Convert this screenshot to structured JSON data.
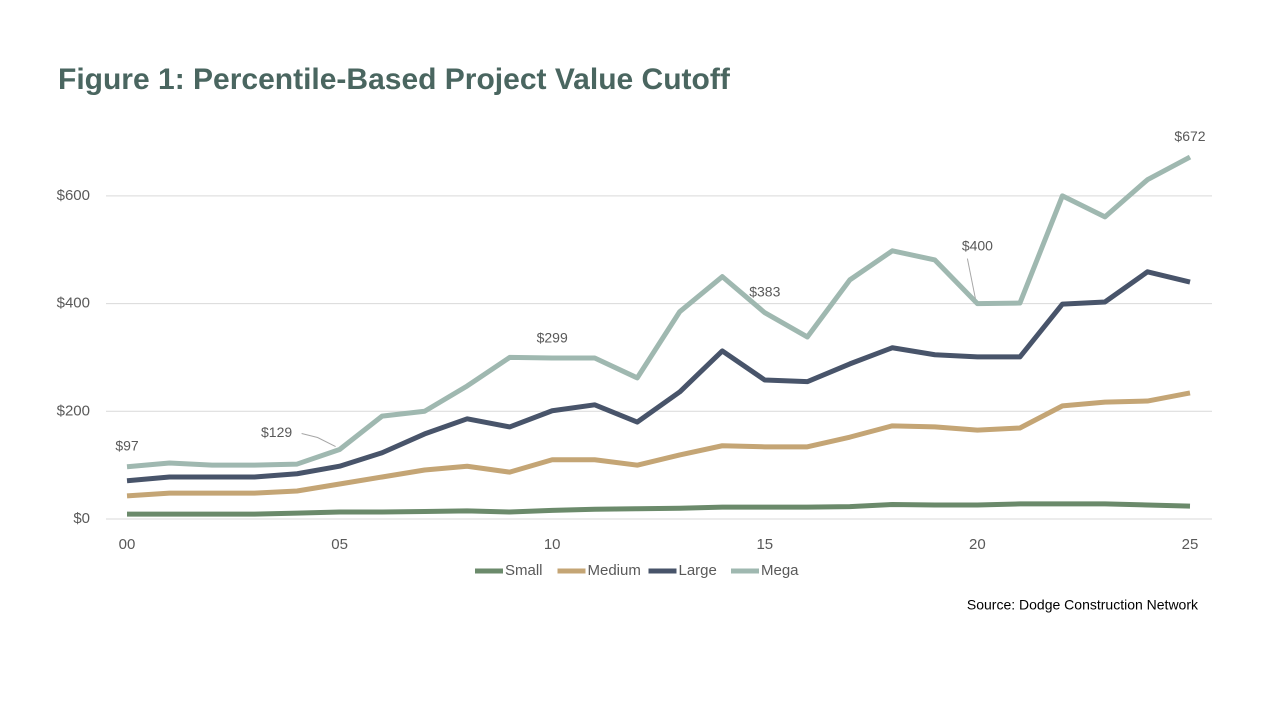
{
  "chart_data": {
    "type": "line",
    "title": "Figure 1: Percentile-Based Project Value Cutoff",
    "source": "Source: Dodge Construction Network",
    "x": [
      0,
      1,
      2,
      3,
      4,
      5,
      6,
      7,
      8,
      9,
      10,
      11,
      12,
      13,
      14,
      15,
      16,
      17,
      18,
      19,
      20,
      21,
      22,
      23,
      24,
      25
    ],
    "xlim": [
      0,
      25
    ],
    "xticks": [
      {
        "value": 0,
        "label": "00"
      },
      {
        "value": 5,
        "label": "05"
      },
      10,
      15,
      20,
      25
    ],
    "ylim": [
      0,
      700
    ],
    "yticks": [
      {
        "value": 0,
        "label": "$0"
      },
      {
        "value": 200,
        "label": "$200"
      },
      {
        "value": 400,
        "label": "$400"
      },
      {
        "value": 600,
        "label": "$600"
      }
    ],
    "grid": true,
    "legend": "bottom",
    "series": [
      {
        "name": "Small",
        "color": "#6b8a6b",
        "values": [
          9,
          9,
          9,
          9,
          11,
          13,
          13,
          14,
          15,
          13,
          16,
          18,
          19,
          20,
          22,
          22,
          22,
          23,
          27,
          26,
          26,
          28,
          28,
          28,
          26,
          24
        ]
      },
      {
        "name": "Medium",
        "color": "#c4a575",
        "values": [
          43,
          48,
          48,
          48,
          52,
          65,
          78,
          91,
          98,
          87,
          110,
          110,
          100,
          119,
          136,
          134,
          134,
          152,
          173,
          171,
          165,
          169,
          210,
          217,
          219,
          234
        ]
      },
      {
        "name": "Large",
        "color": "#48546a",
        "values": [
          71,
          78,
          78,
          78,
          84,
          98,
          123,
          158,
          186,
          171,
          201,
          212,
          180,
          236,
          312,
          258,
          255,
          288,
          318,
          305,
          301,
          301,
          399,
          403,
          459,
          440
        ]
      },
      {
        "name": "Mega",
        "color": "#9fb8b0",
        "values": [
          97,
          104,
          100,
          100,
          102,
          129,
          191,
          200,
          247,
          300,
          299,
          299,
          262,
          385,
          450,
          383,
          338,
          444,
          498,
          481,
          400,
          401,
          600,
          561,
          630,
          672
        ],
        "value_labels": [
          "$97",
          null,
          null,
          null,
          null,
          "$129",
          null,
          null,
          null,
          null,
          "$299",
          null,
          null,
          null,
          null,
          "$383",
          null,
          null,
          null,
          null,
          "$400",
          null,
          null,
          null,
          null,
          "$672"
        ]
      }
    ]
  }
}
